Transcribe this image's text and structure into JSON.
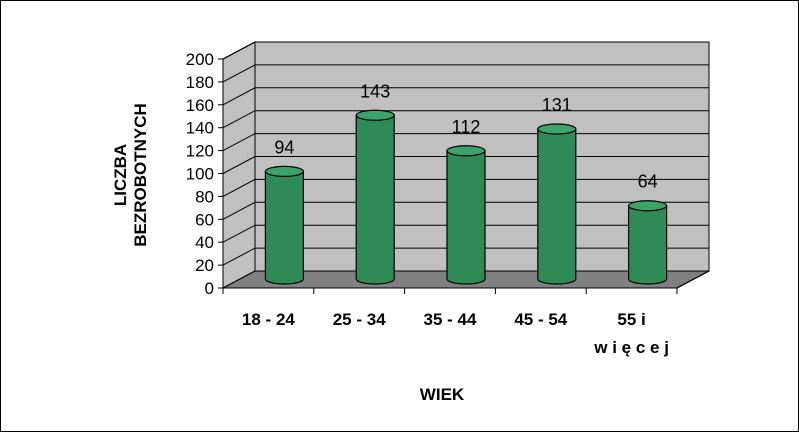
{
  "chart_data": {
    "type": "bar",
    "style": "3d-cylinder",
    "categories": [
      "18 - 24",
      "25 - 34",
      "35 - 44",
      "45 - 54",
      "55 i więcej"
    ],
    "category_lines": [
      [
        "18 - 24"
      ],
      [
        "25 - 34"
      ],
      [
        "35 - 44"
      ],
      [
        "45 - 54"
      ],
      [
        "55 i",
        "w i ę c e j"
      ]
    ],
    "values": [
      94,
      143,
      112,
      131,
      64
    ],
    "data_labels": [
      "94",
      "143",
      "112",
      "131",
      "64"
    ],
    "xlabel": "WIEK",
    "ylabel_lines": [
      "LICZBA",
      "BEZROBOTNYCH"
    ],
    "ylim": [
      0,
      200
    ],
    "yticks": [
      0,
      20,
      40,
      60,
      80,
      100,
      120,
      140,
      160,
      180,
      200
    ],
    "grid": true,
    "legend": "none",
    "colors": {
      "bar_fill": "#2e8b57",
      "bar_top": "#3aa46a",
      "bar_stroke": "#000000",
      "wall": "#c0c0c0",
      "floor": "#808080",
      "gridline": "#000000"
    }
  }
}
